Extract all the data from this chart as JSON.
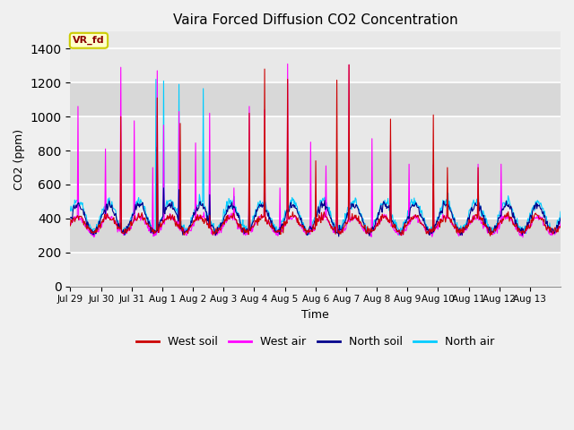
{
  "title": "Vaira Forced Diffusion CO2 Concentration",
  "xlabel": "Time",
  "ylabel": "CO2 (ppm)",
  "ylim": [
    0,
    1500
  ],
  "yticks": [
    0,
    200,
    400,
    600,
    800,
    1000,
    1200,
    1400
  ],
  "legend_label": "VR_fd",
  "series_labels": [
    "West soil",
    "West air",
    "North soil",
    "North air"
  ],
  "series_colors": [
    "#cc0000",
    "#ff00ff",
    "#00008b",
    "#00ccff"
  ],
  "background_color": "#f0f0f0",
  "plot_bg_color": "#e8e8e8",
  "x_tick_labels": [
    "Jul 29",
    "Jul 30",
    "Jul 31",
    "Aug 1",
    "Aug 2",
    "Aug 3",
    "Aug 4",
    "Aug 5",
    "Aug 6",
    "Aug 7",
    "Aug 8",
    "Aug 9",
    "Aug 10",
    "Aug 11",
    "Aug 12",
    "Aug 13"
  ],
  "num_days": 16,
  "seed": 42,
  "figwidth": 6.4,
  "figheight": 4.8,
  "dpi": 100
}
